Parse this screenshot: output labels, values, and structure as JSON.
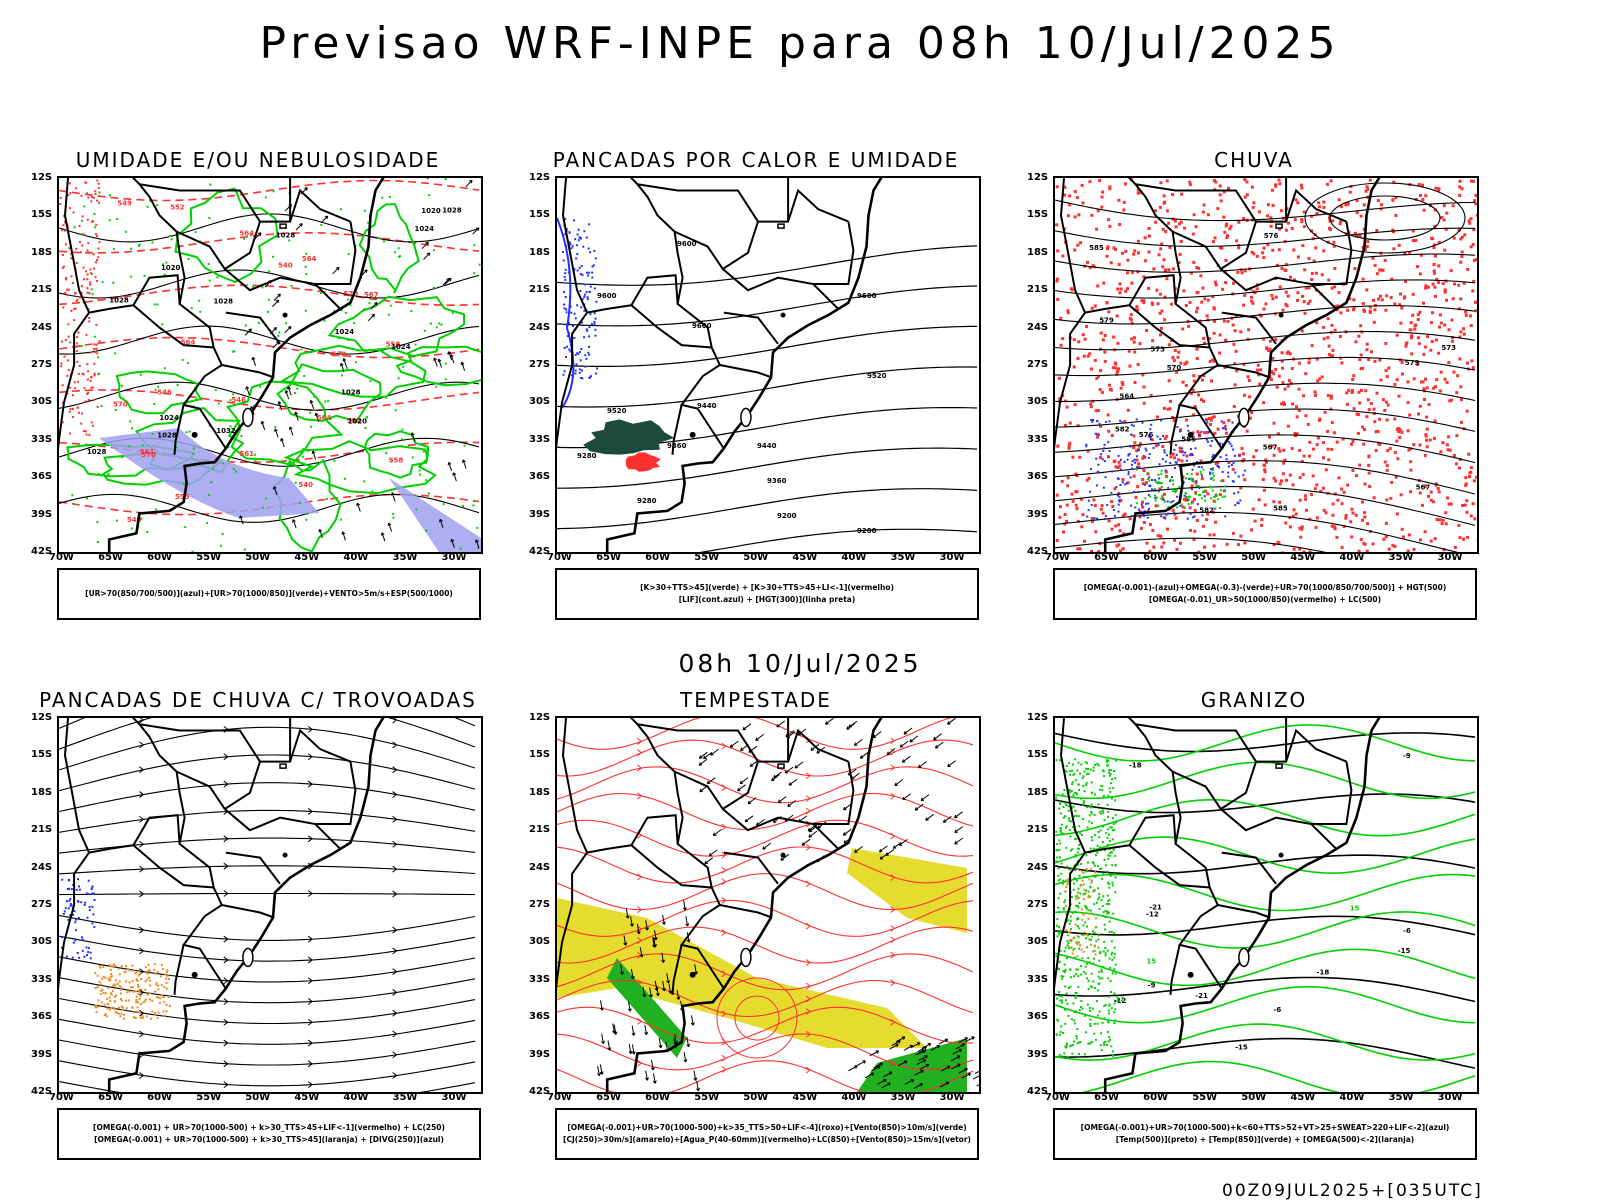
{
  "title": "Previsao WRF-INPE  para 08h 10/Jul/2025",
  "mid_date": "08h 10/Jul/2025",
  "footer": "00Z09JUL2025+[035UTC]",
  "lat_labels": [
    "12S",
    "15S",
    "18S",
    "21S",
    "24S",
    "27S",
    "30S",
    "33S",
    "36S",
    "39S",
    "42S"
  ],
  "lon_labels": [
    "70W",
    "65W",
    "60W",
    "55W",
    "50W",
    "45W",
    "40W",
    "35W",
    "30W"
  ],
  "panels": [
    {
      "id": "umidade",
      "title": "UMIDADE E/OU NEBULOSIDADE",
      "legend": [
        "[UR>70(850/700/500)](azul)+[UR>70(1000/850)](verde)+VENTO>5m/s+ESP(500/1000)"
      ],
      "contour_labels": [
        "570",
        "570",
        "570",
        "570",
        "567",
        "564",
        "564",
        "564",
        "564",
        "561",
        "561",
        "558",
        "558",
        "555",
        "552",
        "552",
        "549",
        "549",
        "546",
        "546",
        "540",
        "540",
        "1020",
        "1020",
        "1020",
        "1024",
        "1024",
        "1024",
        "1024",
        "1028",
        "1028",
        "1028",
        "1028",
        "1028",
        "1028",
        "1028",
        "1032"
      ]
    },
    {
      "id": "pancadas-calor",
      "title": "PANCADAS POR CALOR E UMIDADE",
      "legend": [
        "[K>30+TTS>45](verde) + [K>30+TTS>45+LI<-1](vermelho)",
        "[LIF](cont.azul) + [HGT(300)](linha preta)"
      ],
      "contour_labels": [
        "9600",
        "9600",
        "9600",
        "9600",
        "9520",
        "9520",
        "9440",
        "9440",
        "9360",
        "9360",
        "9280",
        "9280",
        "9200",
        "9200"
      ]
    },
    {
      "id": "chuva",
      "title": "CHUVA",
      "legend": [
        "[OMEGA(-0.001)-(azul)+OMEGA(-0.3)-(verde)+UR>70(1000/850/700/500)] + HGT(500)",
        "[OMEGA(-0.01)_UR>50(1000/850)(vermelho) + LC(500)"
      ],
      "contour_labels": [
        "585",
        "585",
        "585",
        "582",
        "582",
        "579",
        "579",
        "576",
        "576",
        "573",
        "573",
        "570",
        "567",
        "567",
        "564"
      ]
    },
    {
      "id": "pancadas-trovoadas",
      "title": "PANCADAS DE CHUVA C/ TROVOADAS",
      "legend": [
        "[OMEGA(-0.001) + UR>70(1000-500) + k>30_TTS>45+LIF<-1](vermelho) + LC(250)",
        "[OMEGA(-0.001) + UR>70(1000-500) + k>30_TTS>45](laranja) + [DIVG(250)](azul)"
      ],
      "contour_labels": []
    },
    {
      "id": "tempestade",
      "title": "TEMPESTADE",
      "legend": [
        "[OMEGA(-0.001)+UR>70(1000-500)+k>35_TTS>50+LIF<-4](roxo)+[Vento(850)>10m/s](verde)",
        "[CJ(250)>30m/s](amarelo)+[Agua_P(40-60mm)](vermelho)+LC(850)+[Vento(850)>15m/s](vetor)"
      ],
      "contour_labels": []
    },
    {
      "id": "granizo",
      "title": "GRANIZO",
      "legend": [
        "[OMEGA(-0.001)+UR>70(1000-500)+k<60+TTS>52+VT>25+SWEAT>220+LIF<-2](azul)",
        "[Temp(500)](preto) + [Temp(850)](verde) + [OMEGA(500)<-2](laranja)"
      ],
      "contour_labels": [
        "-6",
        "-6",
        "-9",
        "-9",
        "-12",
        "-12",
        "-15",
        "-15",
        "-18",
        "-18",
        "-21",
        "-21",
        "12",
        "15",
        "15"
      ]
    }
  ],
  "colors": {
    "coast": "#000000",
    "green": "#00d000",
    "red": "#ff3030",
    "blue": "#2030ff",
    "lavender": "#a0a0f0",
    "yellow": "#e6dc30",
    "orange": "#f08c20",
    "darkgreen": "#1c4a3c"
  }
}
